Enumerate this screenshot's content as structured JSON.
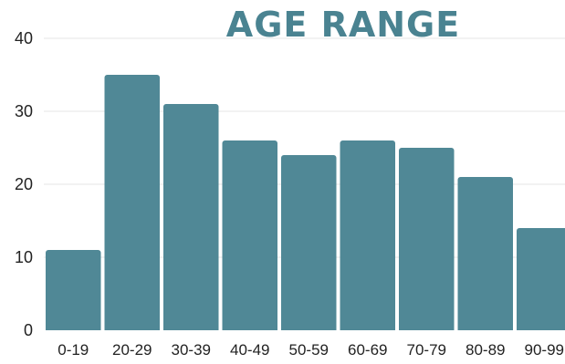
{
  "chart_data": {
    "type": "bar",
    "title": "AGE RANGE",
    "xlabel": "",
    "ylabel": "",
    "categories": [
      "0-19",
      "20-29",
      "30-39",
      "40-49",
      "50-59",
      "60-69",
      "70-79",
      "80-89",
      "90-99"
    ],
    "values": [
      11,
      35,
      31,
      26,
      24,
      26,
      25,
      21,
      14
    ],
    "ylim": [
      0,
      40
    ],
    "yticks": [
      0,
      10,
      20,
      30,
      40
    ],
    "grid": true,
    "legend": "none",
    "colors": {
      "bar": "#508896",
      "title": "#4a8391",
      "grid": "#e6e6e6",
      "text": "#222222"
    }
  }
}
